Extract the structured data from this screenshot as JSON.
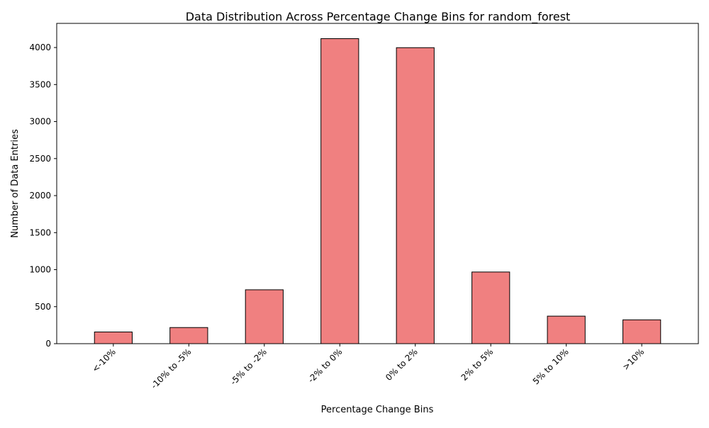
{
  "chart_data": {
    "type": "bar",
    "title": "Data Distribution Across Percentage Change Bins for random_forest",
    "xlabel": "Percentage Change Bins",
    "ylabel": "Number of Data Entries",
    "categories": [
      "<-10%",
      "-10% to -5%",
      "-5% to -2%",
      "-2% to 0%",
      "0% to 2%",
      "2% to 5%",
      "5% to 10%",
      ">10%"
    ],
    "values": [
      158,
      218,
      728,
      4120,
      3998,
      968,
      372,
      322
    ],
    "ylim": [
      0,
      4326
    ],
    "yticks": [
      0,
      500,
      1000,
      1500,
      2000,
      2500,
      3000,
      3500,
      4000
    ],
    "bar_color": "#f08080",
    "edge_color": "#000000",
    "grid": false,
    "legend": "none"
  }
}
